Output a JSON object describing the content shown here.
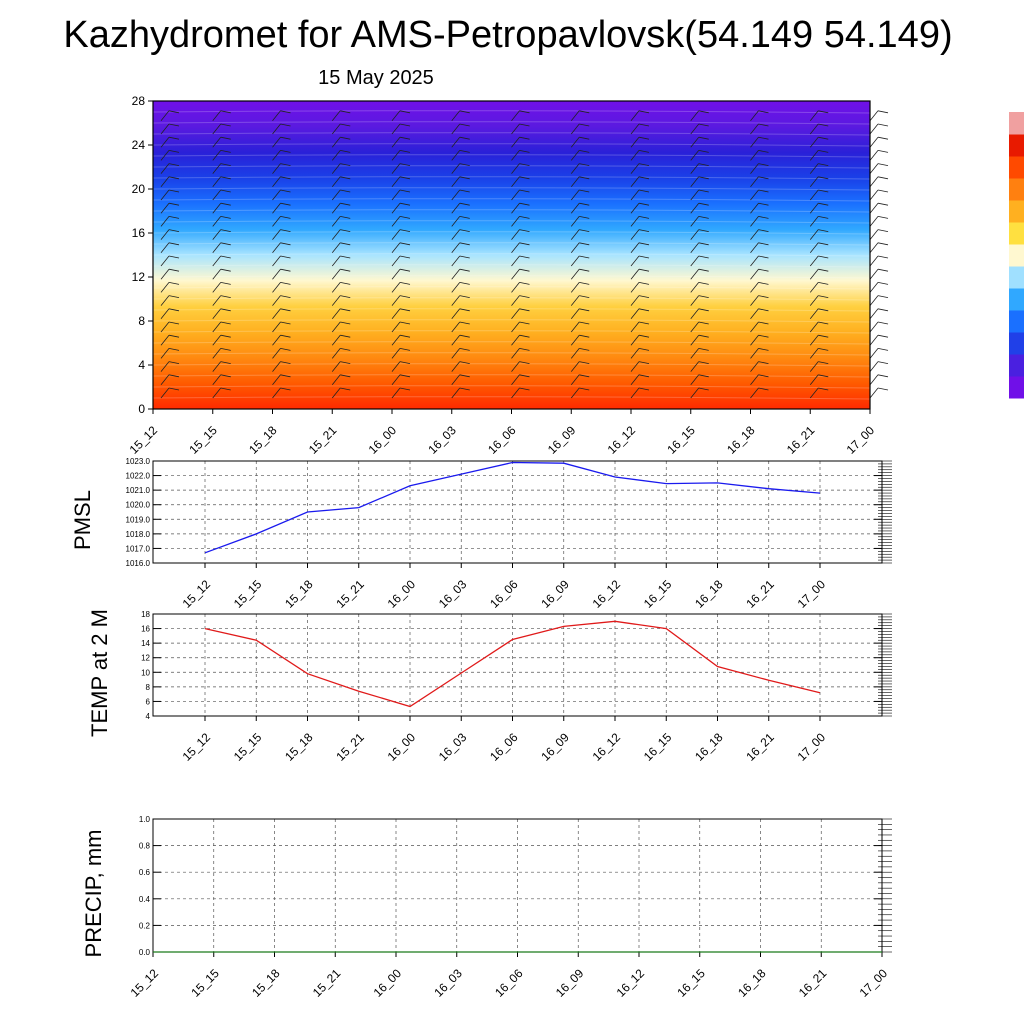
{
  "title": "Kazhydromet for AMS-Petropavlovsk(54.149 54.149)",
  "subtitle": "15 May 2025",
  "time_labels": [
    "15_12",
    "15_15",
    "15_18",
    "15_21",
    "16_00",
    "16_03",
    "16_06",
    "16_09",
    "16_12",
    "16_15",
    "16_18",
    "16_21",
    "17_00"
  ],
  "colors": {
    "pmsl_line": "#1a1aee",
    "temp_line": "#e01a1a",
    "precip_line": "#1a7a1a",
    "grid": "#555555",
    "axis": "#000000"
  },
  "chart_data": [
    {
      "type": "heatmap",
      "title": "",
      "x_tick_labels": [
        "15_12",
        "15_15",
        "15_18",
        "15_21",
        "16_00",
        "16_03",
        "16_06",
        "16_09",
        "16_12",
        "16_15",
        "16_18",
        "16_21",
        "17_00"
      ],
      "ylim": [
        0,
        28
      ],
      "y_ticks": [
        0,
        4,
        8,
        12,
        16,
        20,
        24,
        28
      ],
      "colormap": [
        "#ff2a00",
        "#ff5a00",
        "#ff8a10",
        "#ffb020",
        "#ffd040",
        "#fff8d0",
        "#a8e4ff",
        "#30a8ff",
        "#1a70ff",
        "#1a40e8",
        "#2a20d8",
        "#5a1ae0",
        "#7010e8"
      ],
      "colorbar_colors": [
        "#7010e8",
        "#4a20e0",
        "#2040e8",
        "#1a70ff",
        "#30a8ff",
        "#a0e0ff",
        "#fff8d0",
        "#ffe040",
        "#ffb020",
        "#ff8010",
        "#ff4a00",
        "#e81a00",
        "#f0a0a0"
      ],
      "wind_barbs": true
    },
    {
      "type": "line",
      "ylabel": "PMSL",
      "ylim": [
        1016.0,
        1023.0
      ],
      "y_tick_labels": [
        "1016.0",
        "1017.0",
        "1018.0",
        "1019.0",
        "1020.0",
        "1021.0",
        "1022.0",
        "1023.0"
      ],
      "x_tick_labels": [
        "15_12",
        "15_15",
        "15_18",
        "15_21",
        "16_00",
        "16_03",
        "16_06",
        "16_09",
        "16_12",
        "16_15",
        "16_18",
        "16_21",
        "17_00"
      ],
      "series": [
        {
          "values": [
            1016.7,
            1018.0,
            1019.5,
            1019.8,
            1021.3,
            1022.1,
            1022.9,
            1022.85,
            1021.9,
            1021.45,
            1021.5,
            1021.1,
            1020.8
          ]
        }
      ]
    },
    {
      "type": "line",
      "ylabel": "TEMP at 2 M",
      "ylim": [
        4,
        18
      ],
      "y_tick_labels": [
        "4",
        "6",
        "8",
        "10",
        "12",
        "14",
        "16",
        "18"
      ],
      "x_tick_labels": [
        "15_12",
        "15_15",
        "15_18",
        "15_21",
        "16_00",
        "16_03",
        "16_06",
        "16_09",
        "16_12",
        "16_15",
        "16_18",
        "16_21",
        "17_00"
      ],
      "series": [
        {
          "values": [
            16.0,
            14.4,
            9.8,
            7.4,
            5.3,
            9.9,
            14.5,
            16.3,
            17.0,
            16.0,
            10.8,
            8.9,
            7.2
          ]
        }
      ]
    },
    {
      "type": "line",
      "ylabel": "PRECIP, mm",
      "ylim": [
        0.0,
        1.0
      ],
      "y_tick_labels": [
        "0.0",
        "0.2",
        "0.4",
        "0.6",
        "0.8",
        "1.0"
      ],
      "x_tick_labels": [
        "15_12",
        "15_15",
        "15_18",
        "15_21",
        "16_00",
        "16_03",
        "16_06",
        "16_09",
        "16_12",
        "16_15",
        "16_18",
        "16_21",
        "17_00"
      ],
      "series": [
        {
          "values": [
            0,
            0,
            0,
            0,
            0,
            0,
            0,
            0,
            0,
            0,
            0,
            0,
            0
          ]
        }
      ]
    }
  ]
}
